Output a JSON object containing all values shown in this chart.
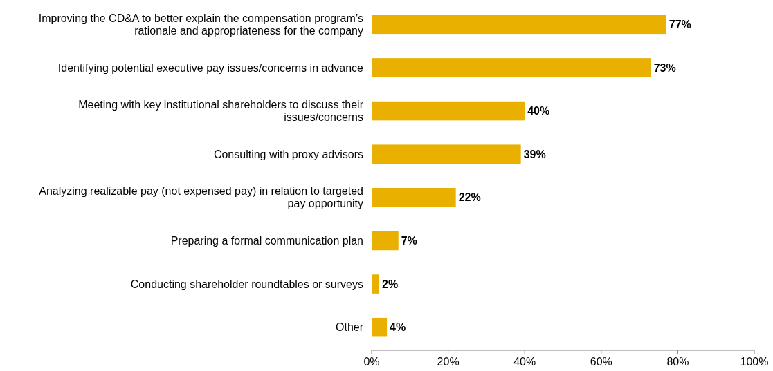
{
  "chart_data": {
    "type": "bar",
    "orientation": "horizontal",
    "categories": [
      "Improving the CD&A to better explain the compensation program’s rationale and appropriateness for the company",
      "Identifying potential executive pay issues/concerns in advance",
      "Meeting with key institutional shareholders to discuss their issues/concerns",
      "Consulting with proxy advisors",
      "Analyzing realizable pay (not expensed pay) in relation to targeted pay opportunity",
      "Preparing a formal communication plan",
      "Conducting shareholder roundtables or surveys",
      "Other"
    ],
    "values": [
      77,
      73,
      40,
      39,
      22,
      7,
      2,
      4
    ],
    "value_labels": [
      "77%",
      "73%",
      "40%",
      "39%",
      "22%",
      "7%",
      "2%",
      "4%"
    ],
    "color": "#e9b000",
    "xlim": [
      0,
      100
    ],
    "xticks": [
      {
        "value": 0,
        "label": "0%"
      },
      {
        "value": 20,
        "label": "20%"
      },
      {
        "value": 40,
        "label": "40%"
      },
      {
        "value": 60,
        "label": "60%"
      },
      {
        "value": 80,
        "label": "80%"
      },
      {
        "value": 100,
        "label": "100%"
      }
    ],
    "grid": false
  }
}
